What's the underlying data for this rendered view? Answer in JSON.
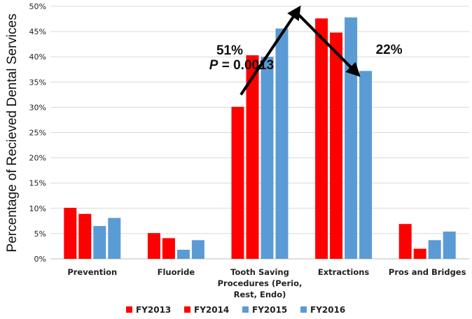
{
  "chart_data": {
    "type": "bar",
    "title": "",
    "xlabel": "",
    "ylabel": "Percentage of Recieved Dental Services",
    "ylim": [
      0,
      0.5
    ],
    "ytick_labels": [
      "0%",
      "5%",
      "10%",
      "15%",
      "20%",
      "25%",
      "30%",
      "35%",
      "40%",
      "45%",
      "50%"
    ],
    "grid": "horizontal",
    "legend_position": "bottom",
    "categories": [
      "Prevention",
      "Fluoride",
      "Tooth Saving Procedures (Perio, Rest, Endo)",
      "Extractions",
      "Pros and Bridges"
    ],
    "category_label_lines": [
      [
        "Prevention"
      ],
      [
        "Fluoride"
      ],
      [
        "Tooth Saving",
        "Procedures (Perio,",
        "Rest, Endo)"
      ],
      [
        "Extractions"
      ],
      [
        "Pros and Bridges"
      ]
    ],
    "series": [
      {
        "name": "FY2013",
        "color": "#ff0000",
        "values": [
          0.101,
          0.051,
          0.301,
          0.476,
          0.069
        ]
      },
      {
        "name": "FY2014",
        "color": "#ff0000",
        "values": [
          0.089,
          0.041,
          0.403,
          0.448,
          0.02
        ]
      },
      {
        "name": "FY2015",
        "color": "#5b9bd5",
        "values": [
          0.065,
          0.018,
          0.4,
          0.478,
          0.037
        ]
      },
      {
        "name": "FY2016",
        "color": "#5b9bd5",
        "values": [
          0.081,
          0.037,
          0.456,
          0.372,
          0.054
        ]
      }
    ],
    "annotations": [
      {
        "text": "51%",
        "target_category": "Tooth Saving Procedures (Perio, Rest, Endo)",
        "direction": "up"
      },
      {
        "p_symbol": "P",
        "text": " = 0.0013",
        "target_category": "Tooth Saving Procedures (Perio, Rest, Endo)"
      },
      {
        "text": "22%",
        "target_category": "Extractions",
        "direction": "down"
      }
    ],
    "arrows": [
      {
        "name": "increase-arrow",
        "from": {
          "category_index": 2,
          "value": 0.325
        },
        "to": {
          "category_index": 2,
          "value": 0.49
        }
      },
      {
        "name": "decrease-arrow",
        "from": {
          "category_index": 3,
          "value": 0.49
        },
        "to": {
          "category_index": 3,
          "value": 0.37
        }
      }
    ]
  }
}
